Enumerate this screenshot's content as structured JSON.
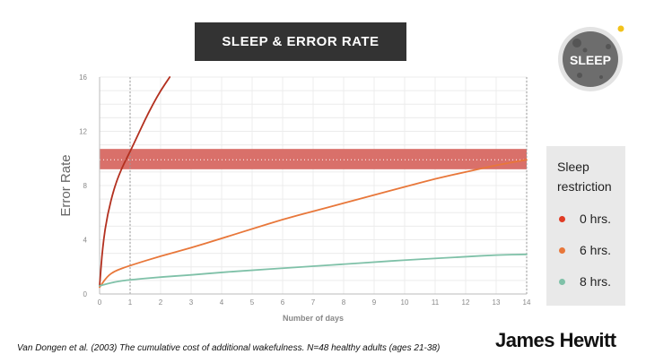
{
  "header": {
    "title": "SLEEP & ERROR RATE"
  },
  "badge": {
    "text": "SLEEP",
    "icon": "moon-icon"
  },
  "legend": {
    "title": "Sleep restriction",
    "items": [
      {
        "label": "0 hrs.",
        "color": "#e03b24"
      },
      {
        "label": "6 hrs.",
        "color": "#e8773a"
      },
      {
        "label": "8 hrs.",
        "color": "#7fc1a8"
      }
    ]
  },
  "footer": {
    "citation": "Van Dongen et al. (2003) The cumulative cost of additional wakefulness. N=48 healthy adults (ages 21-38)",
    "brand": "James Hewitt"
  },
  "chart_data": {
    "type": "line",
    "title": "",
    "xlabel": "Number of days",
    "ylabel": "Error Rate",
    "xlim": [
      0,
      14
    ],
    "ylim": [
      0,
      16
    ],
    "xticks": [
      0,
      1,
      2,
      3,
      4,
      5,
      6,
      7,
      8,
      9,
      10,
      11,
      12,
      13,
      14
    ],
    "yticks": [
      0,
      4,
      8,
      12,
      16
    ],
    "grid": true,
    "band": {
      "ymin": 9.2,
      "ymax": 10.7,
      "color": "#d9706a",
      "midline": 9.9
    },
    "reference_x": [
      1,
      14
    ],
    "series": [
      {
        "name": "0 hrs.",
        "color": "#b3301f",
        "x": [
          0,
          0.1,
          0.25,
          0.5,
          0.75,
          1,
          1.25,
          1.5,
          1.75,
          2,
          2.3
        ],
        "y": [
          0.6,
          3.5,
          5.8,
          8.0,
          9.4,
          10.5,
          11.7,
          12.9,
          14.0,
          15.0,
          16.0
        ]
      },
      {
        "name": "6 hrs.",
        "color": "#e8773a",
        "x": [
          0,
          0.25,
          0.5,
          1,
          2,
          3,
          4,
          5,
          6,
          7,
          8,
          9,
          10,
          11,
          12,
          13,
          14
        ],
        "y": [
          0.5,
          1.3,
          1.7,
          2.1,
          2.8,
          3.4,
          4.1,
          4.8,
          5.5,
          6.1,
          6.7,
          7.3,
          7.9,
          8.5,
          9.0,
          9.5,
          9.9
        ]
      },
      {
        "name": "8 hrs.",
        "color": "#7fc1a8",
        "x": [
          0,
          0.5,
          1,
          2,
          3,
          4,
          5,
          6,
          7,
          8,
          9,
          10,
          11,
          12,
          13,
          14
        ],
        "y": [
          0.6,
          0.9,
          1.05,
          1.25,
          1.4,
          1.6,
          1.75,
          1.9,
          2.05,
          2.2,
          2.35,
          2.5,
          2.62,
          2.75,
          2.88,
          2.92
        ]
      }
    ]
  }
}
